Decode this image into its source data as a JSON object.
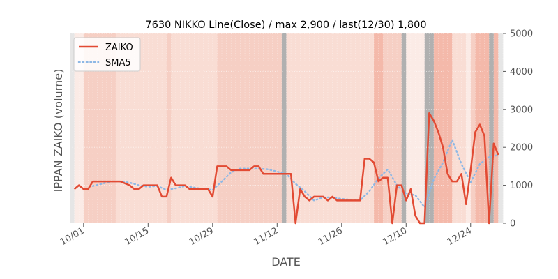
{
  "chart_data": {
    "type": "line",
    "title": "7630 NIKKO Line(Close) / max 2,900 / last(12/30) 1,800",
    "xlabel": "DATE",
    "ylabel": "IPPAN ZAIKO (volume)",
    "ylim": [
      0,
      5000
    ],
    "yticks": [
      0,
      1000,
      2000,
      3000,
      4000,
      5000
    ],
    "ytick_labels": [
      "0",
      "1000",
      "2000",
      "3000",
      "4000",
      "5000"
    ],
    "y_axis_side": "right",
    "grid": true,
    "legend_position": "top-left",
    "x_start": "2023-09-28",
    "x_end": "2023-12-31",
    "xticks": [
      {
        "date": "2023-10-01",
        "label": "10/01"
      },
      {
        "date": "2023-10-15",
        "label": "10/15"
      },
      {
        "date": "2023-10-29",
        "label": "10/29"
      },
      {
        "date": "2023-11-12",
        "label": "11/12"
      },
      {
        "date": "2023-11-26",
        "label": "11/26"
      },
      {
        "date": "2023-12-10",
        "label": "12/10"
      },
      {
        "date": "2023-12-24",
        "label": "12/24"
      }
    ],
    "background_bands": [
      {
        "from": "2023-09-28",
        "to": "2023-09-29",
        "color": "#e6e6e6"
      },
      {
        "from": "2023-09-29",
        "to": "2023-10-01",
        "color": "#fbebe6"
      },
      {
        "from": "2023-10-01",
        "to": "2023-10-08",
        "color": "#f6cfc4"
      },
      {
        "from": "2023-10-08",
        "to": "2023-10-19",
        "color": "#f9ddd4"
      },
      {
        "from": "2023-10-19",
        "to": "2023-10-20",
        "color": "#f6cfc4"
      },
      {
        "from": "2023-10-20",
        "to": "2023-10-30",
        "color": "#f9ddd4"
      },
      {
        "from": "2023-10-30",
        "to": "2023-11-13",
        "color": "#f6cfc4"
      },
      {
        "from": "2023-11-13",
        "to": "2023-11-14",
        "color": "#b0b0b0"
      },
      {
        "from": "2023-11-14",
        "to": "2023-12-03",
        "color": "#f9ddd4"
      },
      {
        "from": "2023-12-03",
        "to": "2023-12-05",
        "color": "#f4b9aa"
      },
      {
        "from": "2023-12-05",
        "to": "2023-12-09",
        "color": "#f6cfc4"
      },
      {
        "from": "2023-12-09",
        "to": "2023-12-10",
        "color": "#b0b0b0"
      },
      {
        "from": "2023-12-10",
        "to": "2023-12-14",
        "color": "#fbebe6"
      },
      {
        "from": "2023-12-14",
        "to": "2023-12-16",
        "color": "#b0b0b0"
      },
      {
        "from": "2023-12-16",
        "to": "2023-12-20",
        "color": "#f4b9aa"
      },
      {
        "from": "2023-12-20",
        "to": "2023-12-23",
        "color": "#f9ddd4"
      },
      {
        "from": "2023-12-23",
        "to": "2023-12-24",
        "color": "#fbebe6"
      },
      {
        "from": "2023-12-24",
        "to": "2023-12-25",
        "color": "#f6cfc4"
      },
      {
        "from": "2023-12-25",
        "to": "2023-12-28",
        "color": "#f4b9aa"
      },
      {
        "from": "2023-12-28",
        "to": "2023-12-29",
        "color": "#b0b0b0"
      },
      {
        "from": "2023-12-29",
        "to": "2023-12-30",
        "color": "#f4b9aa"
      },
      {
        "from": "2023-12-30",
        "to": "2023-12-31",
        "color": "#e6e6e6"
      }
    ],
    "series": [
      {
        "name": "ZAIKO",
        "color": "#e24a33",
        "style": "solid",
        "points": [
          [
            "2023-09-29",
            900
          ],
          [
            "2023-09-30",
            1000
          ],
          [
            "2023-10-01",
            900
          ],
          [
            "2023-10-02",
            900
          ],
          [
            "2023-10-03",
            1100
          ],
          [
            "2023-10-04",
            1100
          ],
          [
            "2023-10-05",
            1100
          ],
          [
            "2023-10-06",
            1100
          ],
          [
            "2023-10-07",
            1100
          ],
          [
            "2023-10-08",
            1100
          ],
          [
            "2023-10-09",
            1100
          ],
          [
            "2023-10-10",
            1050
          ],
          [
            "2023-10-11",
            1000
          ],
          [
            "2023-10-12",
            900
          ],
          [
            "2023-10-13",
            900
          ],
          [
            "2023-10-14",
            1000
          ],
          [
            "2023-10-15",
            1000
          ],
          [
            "2023-10-16",
            1000
          ],
          [
            "2023-10-17",
            1000
          ],
          [
            "2023-10-18",
            700
          ],
          [
            "2023-10-19",
            700
          ],
          [
            "2023-10-20",
            1200
          ],
          [
            "2023-10-21",
            1000
          ],
          [
            "2023-10-22",
            1000
          ],
          [
            "2023-10-23",
            1000
          ],
          [
            "2023-10-24",
            900
          ],
          [
            "2023-10-25",
            900
          ],
          [
            "2023-10-26",
            900
          ],
          [
            "2023-10-27",
            900
          ],
          [
            "2023-10-28",
            900
          ],
          [
            "2023-10-29",
            700
          ],
          [
            "2023-10-30",
            1500
          ],
          [
            "2023-10-31",
            1500
          ],
          [
            "2023-11-01",
            1500
          ],
          [
            "2023-11-02",
            1400
          ],
          [
            "2023-11-03",
            1400
          ],
          [
            "2023-11-04",
            1400
          ],
          [
            "2023-11-05",
            1400
          ],
          [
            "2023-11-06",
            1400
          ],
          [
            "2023-11-07",
            1500
          ],
          [
            "2023-11-08",
            1500
          ],
          [
            "2023-11-09",
            1300
          ],
          [
            "2023-11-10",
            1300
          ],
          [
            "2023-11-11",
            1300
          ],
          [
            "2023-11-12",
            1300
          ],
          [
            "2023-11-13",
            1300
          ],
          [
            "2023-11-14",
            1300
          ],
          [
            "2023-11-15",
            1300
          ],
          [
            "2023-11-16",
            0
          ],
          [
            "2023-11-17",
            900
          ],
          [
            "2023-11-18",
            700
          ],
          [
            "2023-11-19",
            600
          ],
          [
            "2023-11-20",
            700
          ],
          [
            "2023-11-21",
            700
          ],
          [
            "2023-11-22",
            700
          ],
          [
            "2023-11-23",
            600
          ],
          [
            "2023-11-24",
            700
          ],
          [
            "2023-11-25",
            600
          ],
          [
            "2023-11-26",
            600
          ],
          [
            "2023-11-27",
            600
          ],
          [
            "2023-11-28",
            600
          ],
          [
            "2023-11-29",
            600
          ],
          [
            "2023-11-30",
            600
          ],
          [
            "2023-12-01",
            1700
          ],
          [
            "2023-12-02",
            1700
          ],
          [
            "2023-12-03",
            1600
          ],
          [
            "2023-12-04",
            1100
          ],
          [
            "2023-12-05",
            1200
          ],
          [
            "2023-12-06",
            1200
          ],
          [
            "2023-12-07",
            0
          ],
          [
            "2023-12-08",
            1000
          ],
          [
            "2023-12-09",
            1000
          ],
          [
            "2023-12-10",
            600
          ],
          [
            "2023-12-11",
            900
          ],
          [
            "2023-12-12",
            200
          ],
          [
            "2023-12-13",
            0
          ],
          [
            "2023-12-14",
            0
          ],
          [
            "2023-12-15",
            2900
          ],
          [
            "2023-12-16",
            2700
          ],
          [
            "2023-12-17",
            2400
          ],
          [
            "2023-12-18",
            2000
          ],
          [
            "2023-12-19",
            1300
          ],
          [
            "2023-12-20",
            1100
          ],
          [
            "2023-12-21",
            1100
          ],
          [
            "2023-12-22",
            1300
          ],
          [
            "2023-12-23",
            500
          ],
          [
            "2023-12-24",
            1400
          ],
          [
            "2023-12-25",
            2400
          ],
          [
            "2023-12-26",
            2600
          ],
          [
            "2023-12-27",
            2300
          ],
          [
            "2023-12-28",
            0
          ],
          [
            "2023-12-29",
            2100
          ],
          [
            "2023-12-30",
            1800
          ]
        ]
      },
      {
        "name": "SMA5",
        "color": "#8eb8e5",
        "style": "dotted",
        "points": [
          [
            "2023-10-03",
            980
          ],
          [
            "2023-10-05",
            1040
          ],
          [
            "2023-10-07",
            1100
          ],
          [
            "2023-10-09",
            1100
          ],
          [
            "2023-10-11",
            1070
          ],
          [
            "2023-10-13",
            1000
          ],
          [
            "2023-10-15",
            960
          ],
          [
            "2023-10-17",
            980
          ],
          [
            "2023-10-19",
            880
          ],
          [
            "2023-10-21",
            920
          ],
          [
            "2023-10-23",
            980
          ],
          [
            "2023-10-25",
            940
          ],
          [
            "2023-10-27",
            900
          ],
          [
            "2023-10-29",
            880
          ],
          [
            "2023-10-31",
            1100
          ],
          [
            "2023-11-02",
            1340
          ],
          [
            "2023-11-04",
            1440
          ],
          [
            "2023-11-06",
            1440
          ],
          [
            "2023-11-08",
            1440
          ],
          [
            "2023-11-10",
            1420
          ],
          [
            "2023-11-12",
            1360
          ],
          [
            "2023-11-14",
            1300
          ],
          [
            "2023-11-16",
            1040
          ],
          [
            "2023-11-18",
            840
          ],
          [
            "2023-11-20",
            600
          ],
          [
            "2023-11-22",
            680
          ],
          [
            "2023-11-24",
            680
          ],
          [
            "2023-11-26",
            640
          ],
          [
            "2023-11-28",
            620
          ],
          [
            "2023-11-30",
            600
          ],
          [
            "2023-12-02",
            840
          ],
          [
            "2023-12-04",
            1180
          ],
          [
            "2023-12-06",
            1420
          ],
          [
            "2023-12-08",
            1000
          ],
          [
            "2023-12-10",
            780
          ],
          [
            "2023-12-12",
            740
          ],
          [
            "2023-12-14",
            420
          ],
          [
            "2023-12-16",
            1160
          ],
          [
            "2023-12-18",
            1600
          ],
          [
            "2023-12-20",
            2200
          ],
          [
            "2023-12-22",
            1560
          ],
          [
            "2023-12-24",
            1080
          ],
          [
            "2023-12-26",
            1560
          ],
          [
            "2023-12-28",
            1740
          ],
          [
            "2023-12-30",
            1800
          ]
        ]
      }
    ]
  }
}
